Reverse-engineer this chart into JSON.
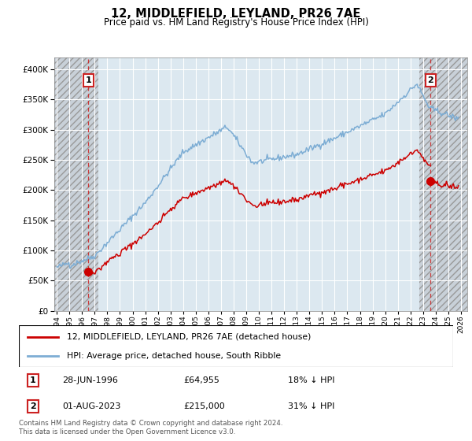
{
  "title": "12, MIDDLEFIELD, LEYLAND, PR26 7AE",
  "subtitle": "Price paid vs. HM Land Registry's House Price Index (HPI)",
  "hpi_label": "HPI: Average price, detached house, South Ribble",
  "property_label": "12, MIDDLEFIELD, LEYLAND, PR26 7AE (detached house)",
  "footer": "Contains HM Land Registry data © Crown copyright and database right 2024.\nThis data is licensed under the Open Government Licence v3.0.",
  "transaction1": {
    "label": "1",
    "date": "28-JUN-1996",
    "price": "£64,955",
    "hpi": "18% ↓ HPI"
  },
  "transaction2": {
    "label": "2",
    "date": "01-AUG-2023",
    "price": "£215,000",
    "hpi": "31% ↓ HPI"
  },
  "marker1_x": 1996.5,
  "marker1_y": 64955,
  "marker2_x": 2023.6,
  "marker2_y": 215000,
  "dashed_line1_x": 1996.5,
  "dashed_line2_x": 2023.6,
  "ylim": [
    0,
    420000
  ],
  "xlim": [
    1993.8,
    2026.5
  ],
  "hatch_left_end": 1997.3,
  "hatch_right_start": 2022.7,
  "property_color": "#cc0000",
  "hpi_color": "#7dadd4",
  "annotation_box_color": "#cc2222",
  "grid_color": "#c8d8e8",
  "bg_color": "#dce8f0"
}
